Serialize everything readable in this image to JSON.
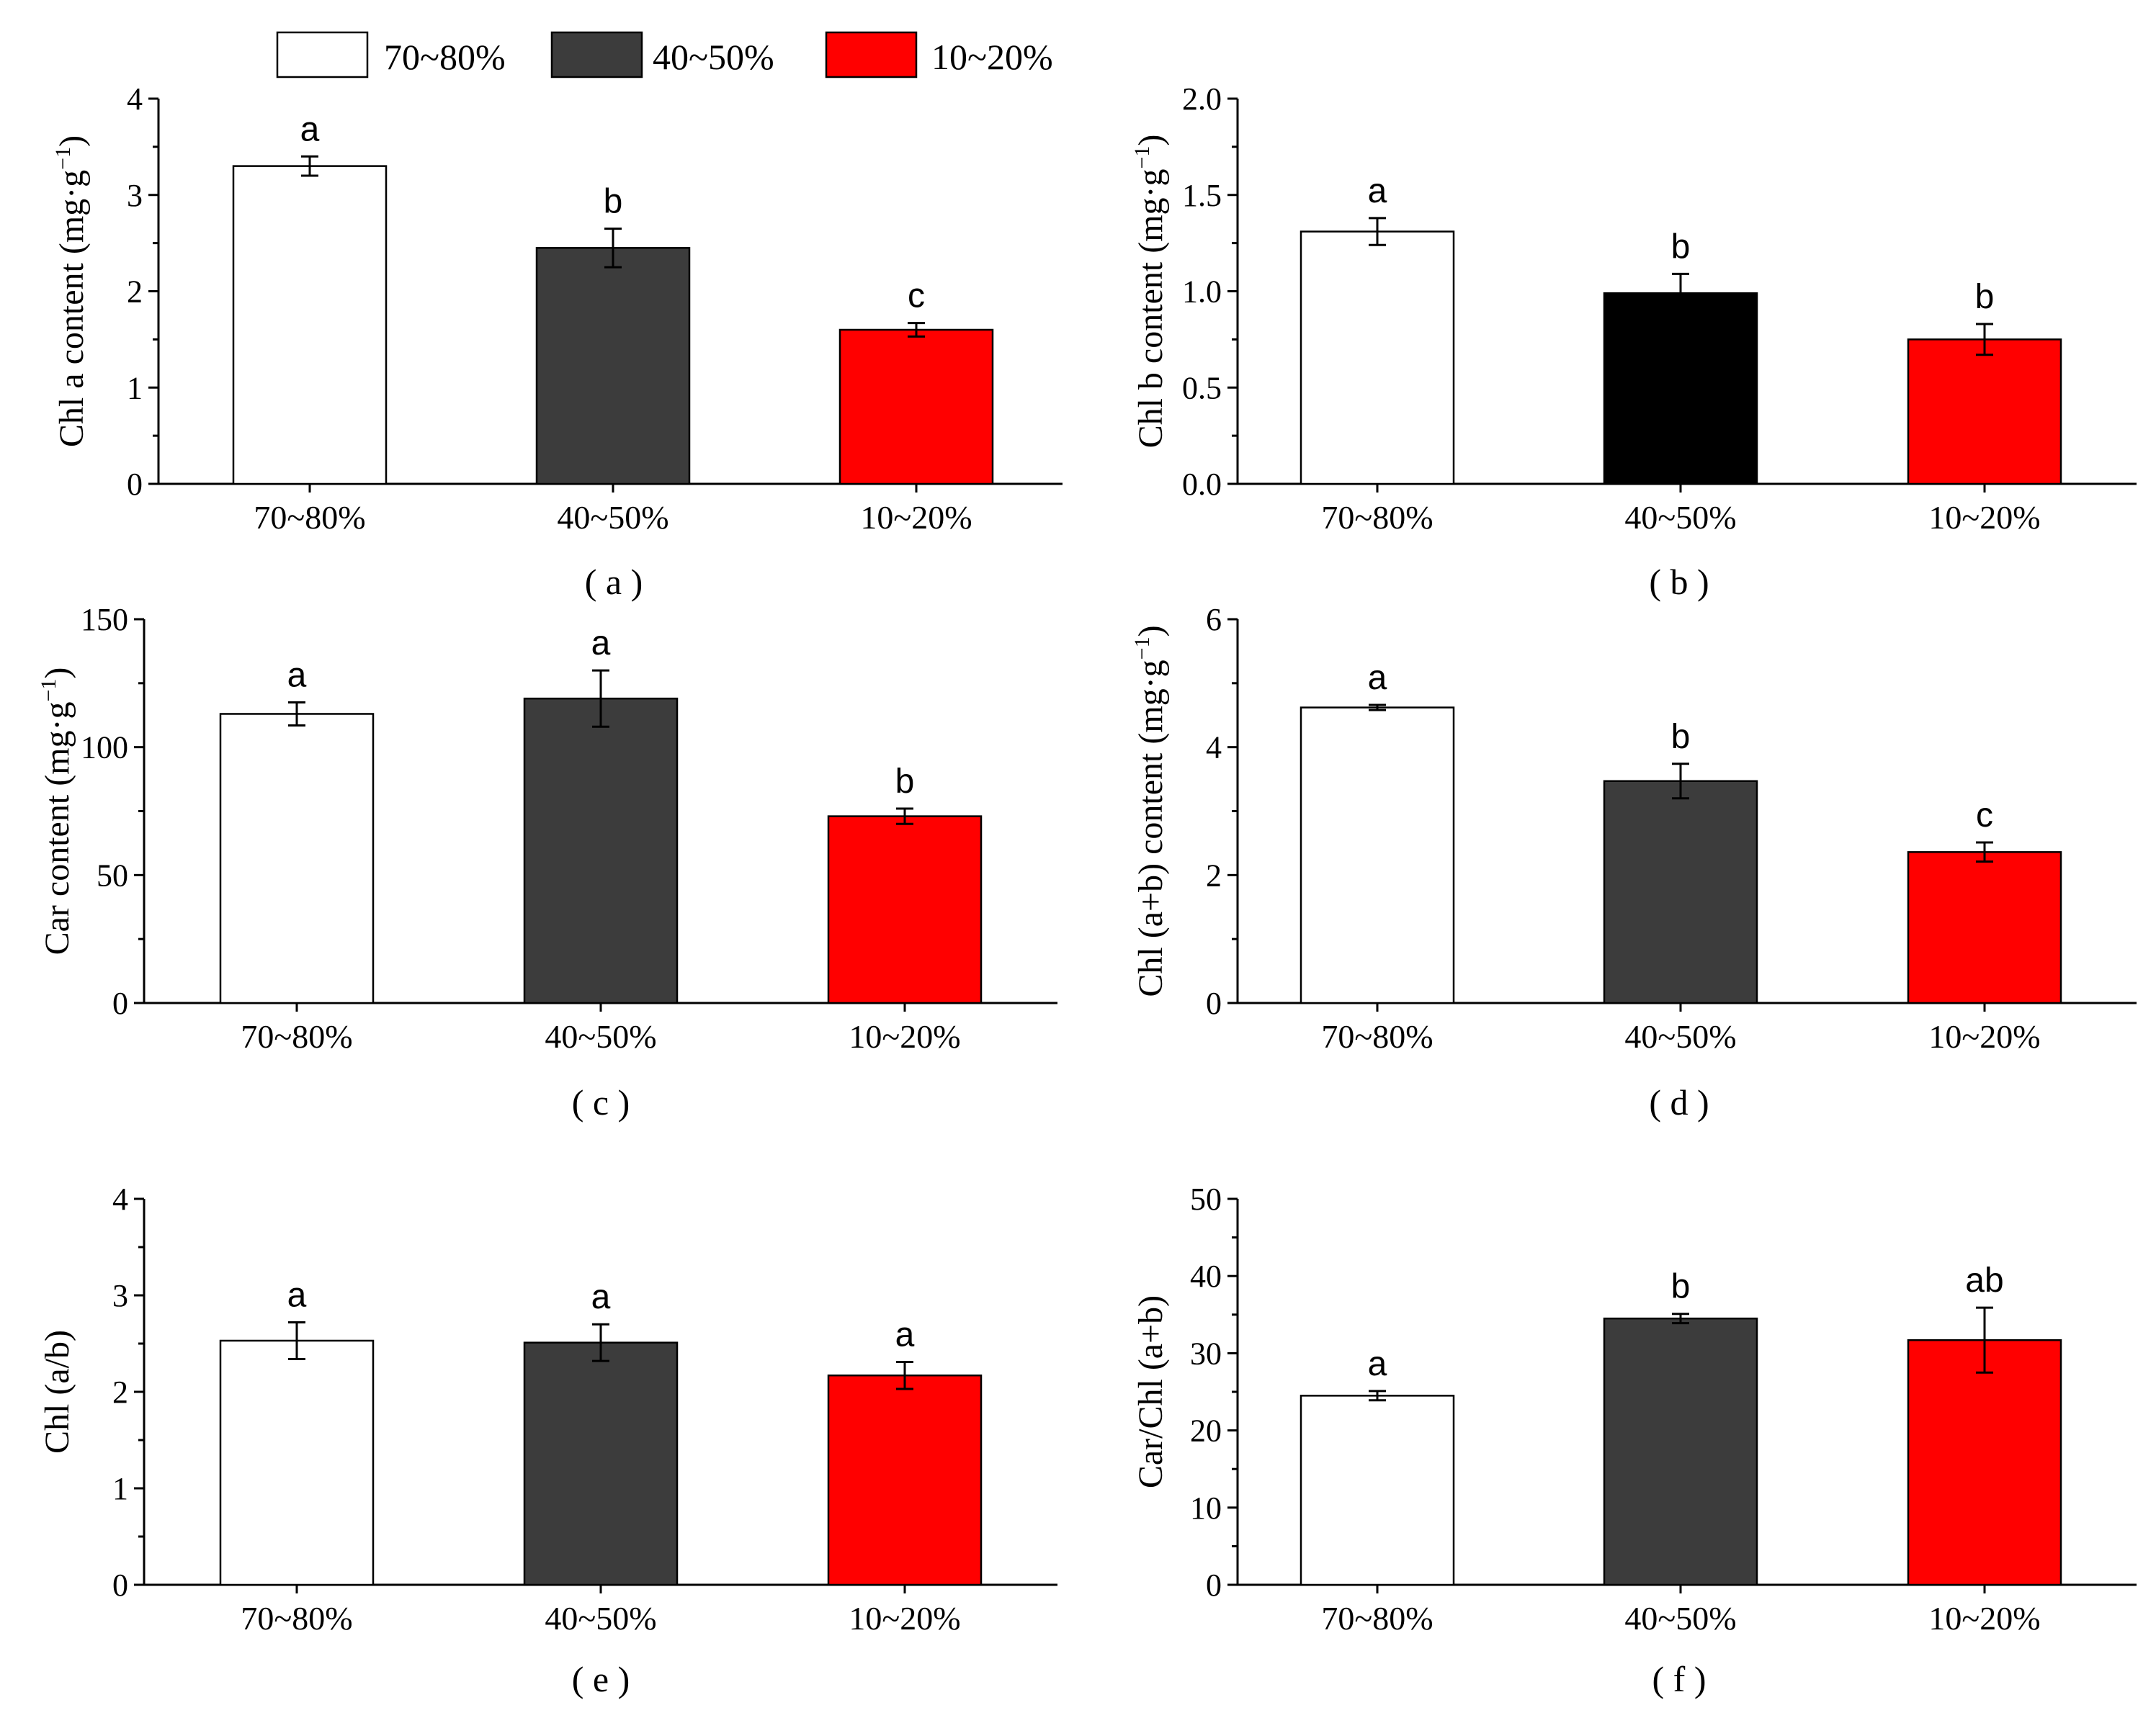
{
  "legend": [
    {
      "label": "70~80%",
      "color": "#ffffff"
    },
    {
      "label": "40~50%",
      "color": "#3c3c3c"
    },
    {
      "label": "10~20%",
      "color": "#ff0000"
    }
  ],
  "chart_data": [
    {
      "type": "bar",
      "panel_label": "( a )",
      "title": "",
      "categories": [
        "70~80%",
        "40~50%",
        "10~20%"
      ],
      "values": [
        3.3,
        2.45,
        1.6
      ],
      "errors": [
        0.1,
        0.2,
        0.07
      ],
      "significance": [
        "a",
        "b",
        "c"
      ],
      "colors": [
        "#ffffff",
        "#3c3c3c",
        "#ff0000"
      ],
      "ylabel": "Chl a content (mg·g",
      "ylabel_sup": "−1",
      "ylabel_close": ")",
      "ylim": [
        0,
        4
      ],
      "yticks": [
        0,
        1,
        2,
        3,
        4
      ],
      "ytick_labels": [
        "0",
        "1",
        "2",
        "3",
        "4"
      ]
    },
    {
      "type": "bar",
      "panel_label": "( b )",
      "title": "",
      "categories": [
        "70~80%",
        "40~50%",
        "10~20%"
      ],
      "values": [
        1.31,
        0.99,
        0.75
      ],
      "errors": [
        0.07,
        0.1,
        0.08
      ],
      "significance": [
        "a",
        "b",
        "b"
      ],
      "colors": [
        "#ffffff",
        "#000000",
        "#ff0000"
      ],
      "ylabel": "Chl b content (mg·g",
      "ylabel_sup": "−1",
      "ylabel_close": ")",
      "ylim": [
        0,
        2.0
      ],
      "yticks": [
        0,
        0.5,
        1.0,
        1.5,
        2.0
      ],
      "ytick_labels": [
        "0.0",
        "0.5",
        "1.0",
        "1.5",
        "2.0"
      ]
    },
    {
      "type": "bar",
      "panel_label": "( c )",
      "title": "",
      "categories": [
        "70~80%",
        "40~50%",
        "10~20%"
      ],
      "values": [
        113,
        119,
        73
      ],
      "errors": [
        4.5,
        11,
        3
      ],
      "significance": [
        "a",
        "a",
        "b"
      ],
      "colors": [
        "#ffffff",
        "#3c3c3c",
        "#ff0000"
      ],
      "ylabel": "Car content (mg·g",
      "ylabel_sup": "−1",
      "ylabel_close": ")",
      "ylim": [
        0,
        150
      ],
      "yticks": [
        0,
        50,
        100,
        150
      ],
      "ytick_labels": [
        "0",
        "50",
        "100",
        "150"
      ]
    },
    {
      "type": "bar",
      "panel_label": "( d )",
      "title": "",
      "categories": [
        "70~80%",
        "40~50%",
        "10~20%"
      ],
      "values": [
        4.62,
        3.47,
        2.36
      ],
      "errors": [
        0.04,
        0.27,
        0.15
      ],
      "significance": [
        "a",
        "b",
        "c"
      ],
      "colors": [
        "#ffffff",
        "#3c3c3c",
        "#ff0000"
      ],
      "ylabel": "Chl (a+b) content (mg·g",
      "ylabel_sup": "−1",
      "ylabel_close": ")",
      "ylim": [
        0,
        6
      ],
      "yticks": [
        0,
        2,
        4,
        6
      ],
      "ytick_labels": [
        "0",
        "2",
        "4",
        "6"
      ]
    },
    {
      "type": "bar",
      "panel_label": "( e )",
      "title": "",
      "categories": [
        "70~80%",
        "40~50%",
        "10~20%"
      ],
      "values": [
        2.53,
        2.51,
        2.17
      ],
      "errors": [
        0.19,
        0.19,
        0.14
      ],
      "significance": [
        "a",
        "a",
        "a"
      ],
      "colors": [
        "#ffffff",
        "#3c3c3c",
        "#ff0000"
      ],
      "ylabel": "Chl (a/b)",
      "ylabel_sup": "",
      "ylabel_close": "",
      "ylim": [
        0,
        4
      ],
      "yticks": [
        0,
        1,
        2,
        3,
        4
      ],
      "ytick_labels": [
        "0",
        "1",
        "2",
        "3",
        "4"
      ]
    },
    {
      "type": "bar",
      "panel_label": "( f )",
      "title": "",
      "categories": [
        "70~80%",
        "40~50%",
        "10~20%"
      ],
      "values": [
        24.5,
        34.5,
        31.7
      ],
      "errors": [
        0.6,
        0.6,
        4.2
      ],
      "significance": [
        "a",
        "b",
        "ab"
      ],
      "colors": [
        "#ffffff",
        "#3c3c3c",
        "#ff0000"
      ],
      "ylabel": "Car/Chl (a+b)",
      "ylabel_sup": "",
      "ylabel_close": "",
      "ylim": [
        0,
        50
      ],
      "yticks": [
        0,
        10,
        20,
        30,
        40,
        50
      ],
      "ytick_labels": [
        "0",
        "10",
        "20",
        "30",
        "40",
        "50"
      ]
    }
  ]
}
